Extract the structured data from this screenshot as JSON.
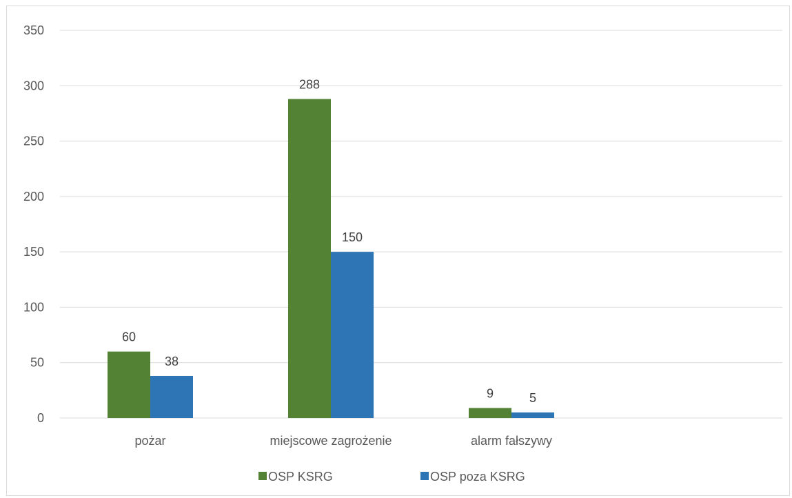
{
  "chart_data": {
    "type": "bar",
    "title": "",
    "xlabel": "",
    "ylabel": "",
    "categories": [
      "pożar",
      "miejscowe zagrożenie",
      "alarm fałszywy",
      ""
    ],
    "series": [
      {
        "name": "OSP KSRG",
        "values": [
          60,
          288,
          9,
          null
        ],
        "color": "#548235"
      },
      {
        "name": "OSP poza KSRG",
        "values": [
          38,
          150,
          5,
          null
        ],
        "color": "#2e75b6"
      }
    ],
    "ylim": [
      0,
      350
    ],
    "yticks": [
      0,
      50,
      100,
      150,
      200,
      250,
      300,
      350
    ],
    "grid": true,
    "legend_position": "bottom",
    "data_labels": true,
    "gridline_color": "#d9d9d9"
  }
}
